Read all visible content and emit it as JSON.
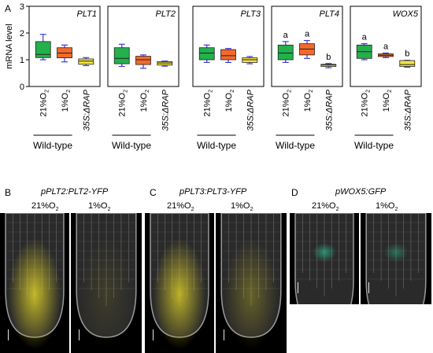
{
  "panel_a": {
    "letter": "A",
    "ylabel": "mRNA level",
    "yticks": [
      "0",
      "1",
      "2",
      "3"
    ],
    "group_label": "Wild-type"
  },
  "chart_data": {
    "type": "box",
    "ylabel": "mRNA level",
    "ylim": [
      0,
      3
    ],
    "yticks": [
      0,
      1,
      2,
      3
    ],
    "categories": [
      "21%O2",
      "1%O2",
      "35S:ΔRAP"
    ],
    "category_display": [
      {
        "main": "21%O",
        "sub": "2",
        "italic": false
      },
      {
        "main": "1%O",
        "sub": "2",
        "italic": false
      },
      {
        "main": "35S:ΔRAP",
        "sub": "",
        "italic": true
      }
    ],
    "group_label": "Wild-type",
    "colors": {
      "21%O2": "#22b14c",
      "1%O2": "#f2692b",
      "35S:ΔRAP": "#f5e33c",
      "whisker": "#3a3ad6"
    },
    "panels": [
      {
        "gene": "PLT1",
        "boxes": [
          {
            "min": 1.0,
            "q1": 1.08,
            "median": 1.2,
            "q3": 1.68,
            "max": 1.95,
            "letter": ""
          },
          {
            "min": 0.92,
            "q1": 1.07,
            "median": 1.25,
            "q3": 1.45,
            "max": 1.55,
            "letter": ""
          },
          {
            "min": 0.78,
            "q1": 0.83,
            "median": 0.95,
            "q3": 1.03,
            "max": 1.08,
            "letter": ""
          }
        ]
      },
      {
        "gene": "PLT2",
        "boxes": [
          {
            "min": 0.75,
            "q1": 0.85,
            "median": 1.05,
            "q3": 1.45,
            "max": 1.58,
            "letter": ""
          },
          {
            "min": 0.68,
            "q1": 0.82,
            "median": 1.0,
            "q3": 1.13,
            "max": 1.18,
            "letter": ""
          },
          {
            "min": 0.76,
            "q1": 0.8,
            "median": 0.88,
            "q3": 0.93,
            "max": 0.95,
            "letter": ""
          }
        ]
      },
      {
        "gene": "PLT3",
        "boxes": [
          {
            "min": 0.9,
            "q1": 1.0,
            "median": 1.25,
            "q3": 1.45,
            "max": 1.55,
            "letter": ""
          },
          {
            "min": 0.9,
            "q1": 1.0,
            "median": 1.15,
            "q3": 1.38,
            "max": 1.42,
            "letter": ""
          },
          {
            "min": 0.85,
            "q1": 0.9,
            "median": 1.0,
            "q3": 1.07,
            "max": 1.12,
            "letter": ""
          }
        ]
      },
      {
        "gene": "PLT4",
        "boxes": [
          {
            "min": 0.9,
            "q1": 1.0,
            "median": 1.25,
            "q3": 1.55,
            "max": 1.68,
            "letter": "a"
          },
          {
            "min": 1.05,
            "q1": 1.18,
            "median": 1.4,
            "q3": 1.6,
            "max": 1.72,
            "letter": "a"
          },
          {
            "min": 0.7,
            "q1": 0.75,
            "median": 0.8,
            "q3": 0.83,
            "max": 0.86,
            "letter": "b"
          }
        ]
      },
      {
        "gene": "WOX5",
        "boxes": [
          {
            "min": 1.0,
            "q1": 1.05,
            "median": 1.3,
            "q3": 1.55,
            "max": 1.6,
            "letter": "a"
          },
          {
            "min": 1.08,
            "q1": 1.12,
            "median": 1.17,
            "q3": 1.22,
            "max": 1.25,
            "letter": "a"
          },
          {
            "min": 0.72,
            "q1": 0.75,
            "median": 0.82,
            "q3": 0.97,
            "max": 0.98,
            "letter": "b"
          }
        ]
      }
    ]
  },
  "panel_b": {
    "letter": "B",
    "title": "pPLT2:PLT2-YFP",
    "conditions": [
      {
        "main": "21%O",
        "sub": "2",
        "signal": 0.9
      },
      {
        "main": "1%O",
        "sub": "2",
        "signal": 0.12
      }
    ],
    "fluor_color": "#d4c72a"
  },
  "panel_c": {
    "letter": "C",
    "title": "pPLT3:PLT3-YFP",
    "conditions": [
      {
        "main": "21%O",
        "sub": "2",
        "signal": 0.85
      },
      {
        "main": "1%O",
        "sub": "2",
        "signal": 0.35
      }
    ],
    "fluor_color": "#d4c72a"
  },
  "panel_d": {
    "letter": "D",
    "title": "pWOX5:GFP",
    "conditions": [
      {
        "main": "21%O",
        "sub": "2",
        "signal": 0.8
      },
      {
        "main": "1%O",
        "sub": "2",
        "signal": 0.55
      }
    ],
    "fluor_color": "#2fa884"
  }
}
